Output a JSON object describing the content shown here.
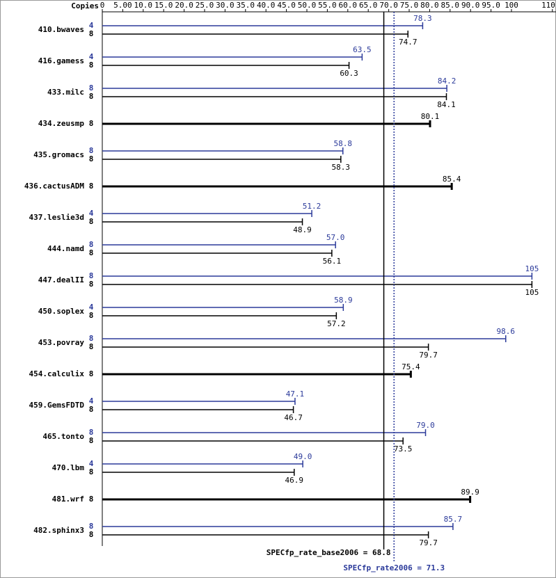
{
  "chart_data": {
    "type": "bar",
    "orientation": "horizontal",
    "copies_label": "Copies",
    "categories": [
      "410.bwaves",
      "416.gamess",
      "433.milc",
      "434.zeusmp",
      "435.gromacs",
      "436.cactusADM",
      "437.leslie3d",
      "444.namd",
      "447.dealII",
      "450.soplex",
      "453.povray",
      "454.calculix",
      "459.GemsFDTD",
      "465.tonto",
      "470.lbm",
      "481.wrf",
      "482.sphinx3"
    ],
    "series": [
      {
        "color": "#2b3a9a",
        "copies": [
          4,
          4,
          8,
          null,
          8,
          null,
          4,
          8,
          8,
          4,
          8,
          null,
          4,
          8,
          4,
          null,
          8
        ],
        "values": [
          78.3,
          63.5,
          84.2,
          null,
          58.8,
          null,
          51.2,
          57.0,
          105,
          58.9,
          98.6,
          null,
          47.1,
          79.0,
          49.0,
          null,
          85.7
        ],
        "value_labels": [
          "78.3",
          "63.5",
          "84.2",
          null,
          "58.8",
          null,
          "51.2",
          "57.0",
          "105",
          "58.9",
          "98.6",
          null,
          "47.1",
          "79.0",
          "49.0",
          null,
          "85.7"
        ]
      },
      {
        "color": "#000000",
        "copies": [
          8,
          8,
          8,
          8,
          8,
          8,
          8,
          8,
          8,
          8,
          8,
          8,
          8,
          8,
          8,
          8,
          8
        ],
        "values": [
          74.7,
          60.3,
          84.1,
          80.1,
          58.3,
          85.4,
          48.9,
          56.1,
          105,
          57.2,
          79.7,
          75.4,
          46.7,
          73.5,
          46.9,
          89.9,
          79.7
        ],
        "value_labels": [
          "74.7",
          "60.3",
          "84.1",
          "80.1",
          "58.3",
          "85.4",
          "48.9",
          "56.1",
          "105",
          "57.2",
          "79.7",
          "75.4",
          "46.7",
          "73.5",
          "46.9",
          "89.9",
          "79.7"
        ]
      }
    ],
    "xlim": [
      0,
      110
    ],
    "xticks": [
      0,
      {
        "value": 5,
        "label": "5.00"
      },
      {
        "value": 10,
        "label": "10.0"
      },
      {
        "value": 15,
        "label": "15.0"
      },
      {
        "value": 20,
        "label": "20.0"
      },
      {
        "value": 25,
        "label": "25.0"
      },
      {
        "value": 30,
        "label": "30.0"
      },
      {
        "value": 35,
        "label": "35.0"
      },
      {
        "value": 40,
        "label": "40.0"
      },
      {
        "value": 45,
        "label": "45.0"
      },
      {
        "value": 50,
        "label": "50.0"
      },
      {
        "value": 55,
        "label": "55.0"
      },
      {
        "value": 60,
        "label": "60.0"
      },
      {
        "value": 65,
        "label": "65.0"
      },
      {
        "value": 70,
        "label": "70.0"
      },
      {
        "value": 75,
        "label": "75.0"
      },
      {
        "value": 80,
        "label": "80.0"
      },
      {
        "value": 85,
        "label": "85.0"
      },
      {
        "value": 90,
        "label": "90.0"
      },
      {
        "value": 95,
        "label": "95.0"
      },
      100,
      110
    ],
    "reference_lines": [
      {
        "value": 68.8,
        "label": "SPECfp_rate_base2006 = 68.8",
        "color": "#000000",
        "dashed": false
      },
      {
        "value": 71.3,
        "label": "SPECfp_rate2006 = 71.3",
        "color": "#2b3a9a",
        "dashed": true
      }
    ]
  }
}
